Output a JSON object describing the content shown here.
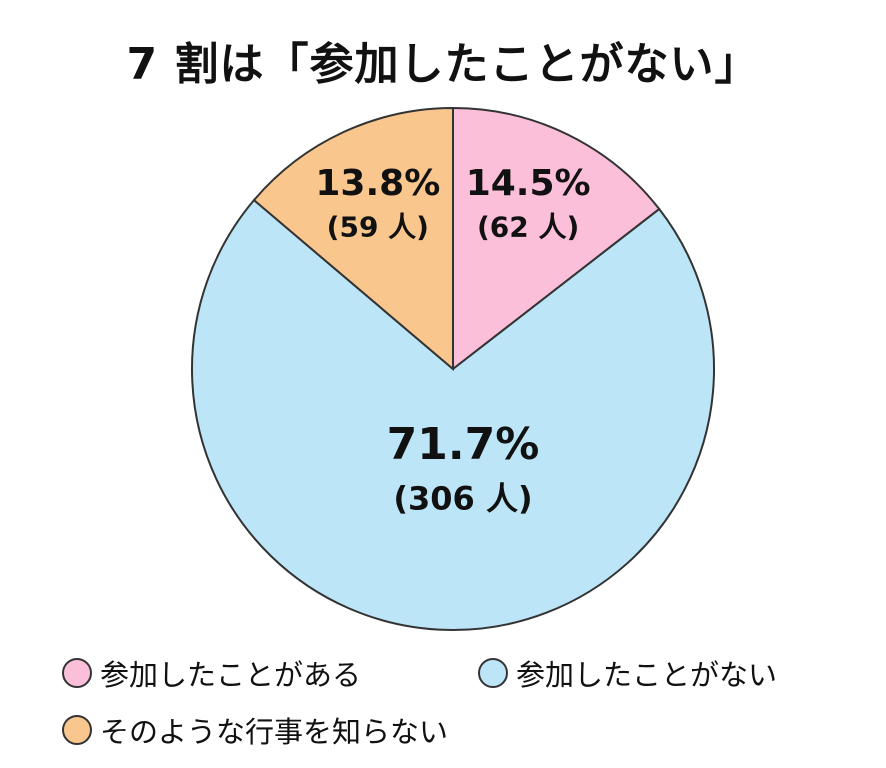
{
  "chart_data": {
    "type": "pie",
    "title": "7 割は「参加したことがない」",
    "slices": [
      {
        "name": "参加したことがある",
        "percent": 14.5,
        "count_label": "(62 人)",
        "percent_label": "14.5%",
        "color": "#fbbfd9"
      },
      {
        "name": "参加したことがない",
        "percent": 71.7,
        "count_label": "(306 人)",
        "percent_label": "71.7%",
        "color": "#bce5f8"
      },
      {
        "name": "そのような行事を知らない",
        "percent": 13.8,
        "count_label": "(59 人)",
        "percent_label": "13.8%",
        "color": "#f9c68e"
      }
    ],
    "start_angle": "12 o'clock",
    "direction": "clockwise",
    "legend_position": "bottom"
  }
}
